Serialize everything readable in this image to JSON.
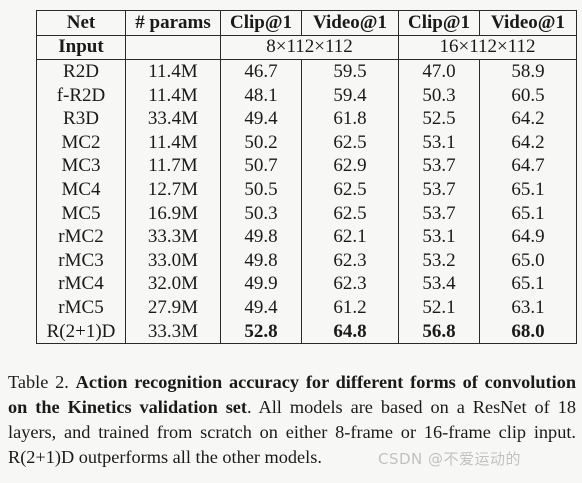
{
  "table": {
    "headers": [
      "Net",
      "# params",
      "Clip@1",
      "Video@1",
      "Clip@1",
      "Video@1"
    ],
    "input_row": {
      "label": "Input",
      "params": "",
      "group1": "8×112×112",
      "group2": "16×112×112"
    },
    "rows": [
      {
        "net": "R2D",
        "params": "11.4M",
        "clip8": "46.7",
        "video8": "59.5",
        "clip16": "47.0",
        "video16": "58.9"
      },
      {
        "net": "f-R2D",
        "params": "11.4M",
        "clip8": "48.1",
        "video8": "59.4",
        "clip16": "50.3",
        "video16": "60.5"
      },
      {
        "net": "R3D",
        "params": "33.4M",
        "clip8": "49.4",
        "video8": "61.8",
        "clip16": "52.5",
        "video16": "64.2"
      },
      {
        "net": "MC2",
        "params": "11.4M",
        "clip8": "50.2",
        "video8": "62.5",
        "clip16": "53.1",
        "video16": "64.2"
      },
      {
        "net": "MC3",
        "params": "11.7M",
        "clip8": "50.7",
        "video8": "62.9",
        "clip16": "53.7",
        "video16": "64.7"
      },
      {
        "net": "MC4",
        "params": "12.7M",
        "clip8": "50.5",
        "video8": "62.5",
        "clip16": "53.7",
        "video16": "65.1"
      },
      {
        "net": "MC5",
        "params": "16.9M",
        "clip8": "50.3",
        "video8": "62.5",
        "clip16": "53.7",
        "video16": "65.1"
      },
      {
        "net": "rMC2",
        "params": "33.3M",
        "clip8": "49.8",
        "video8": "62.1",
        "clip16": "53.1",
        "video16": "64.9"
      },
      {
        "net": "rMC3",
        "params": "33.0M",
        "clip8": "49.8",
        "video8": "62.3",
        "clip16": "53.2",
        "video16": "65.0"
      },
      {
        "net": "rMC4",
        "params": "32.0M",
        "clip8": "49.9",
        "video8": "62.3",
        "clip16": "53.4",
        "video16": "65.1"
      },
      {
        "net": "rMC5",
        "params": "27.9M",
        "clip8": "49.4",
        "video8": "61.2",
        "clip16": "52.1",
        "video16": "63.1"
      },
      {
        "net": "R(2+1)D",
        "params": "33.3M",
        "clip8": "52.8",
        "video8": "64.8",
        "clip16": "56.8",
        "video16": "68.0",
        "bold_values": true
      }
    ]
  },
  "caption": {
    "label": "Table 2.",
    "bold_text": "Action recognition accuracy for different forms of convolution on the Kinetics validation set",
    "rest": ". All models are based on a ResNet of 18 layers, and trained from scratch on either 8-frame or 16-frame clip input. R(2+1)D outperforms all the other models."
  },
  "watermark": "CSDN @不爱运动的"
}
